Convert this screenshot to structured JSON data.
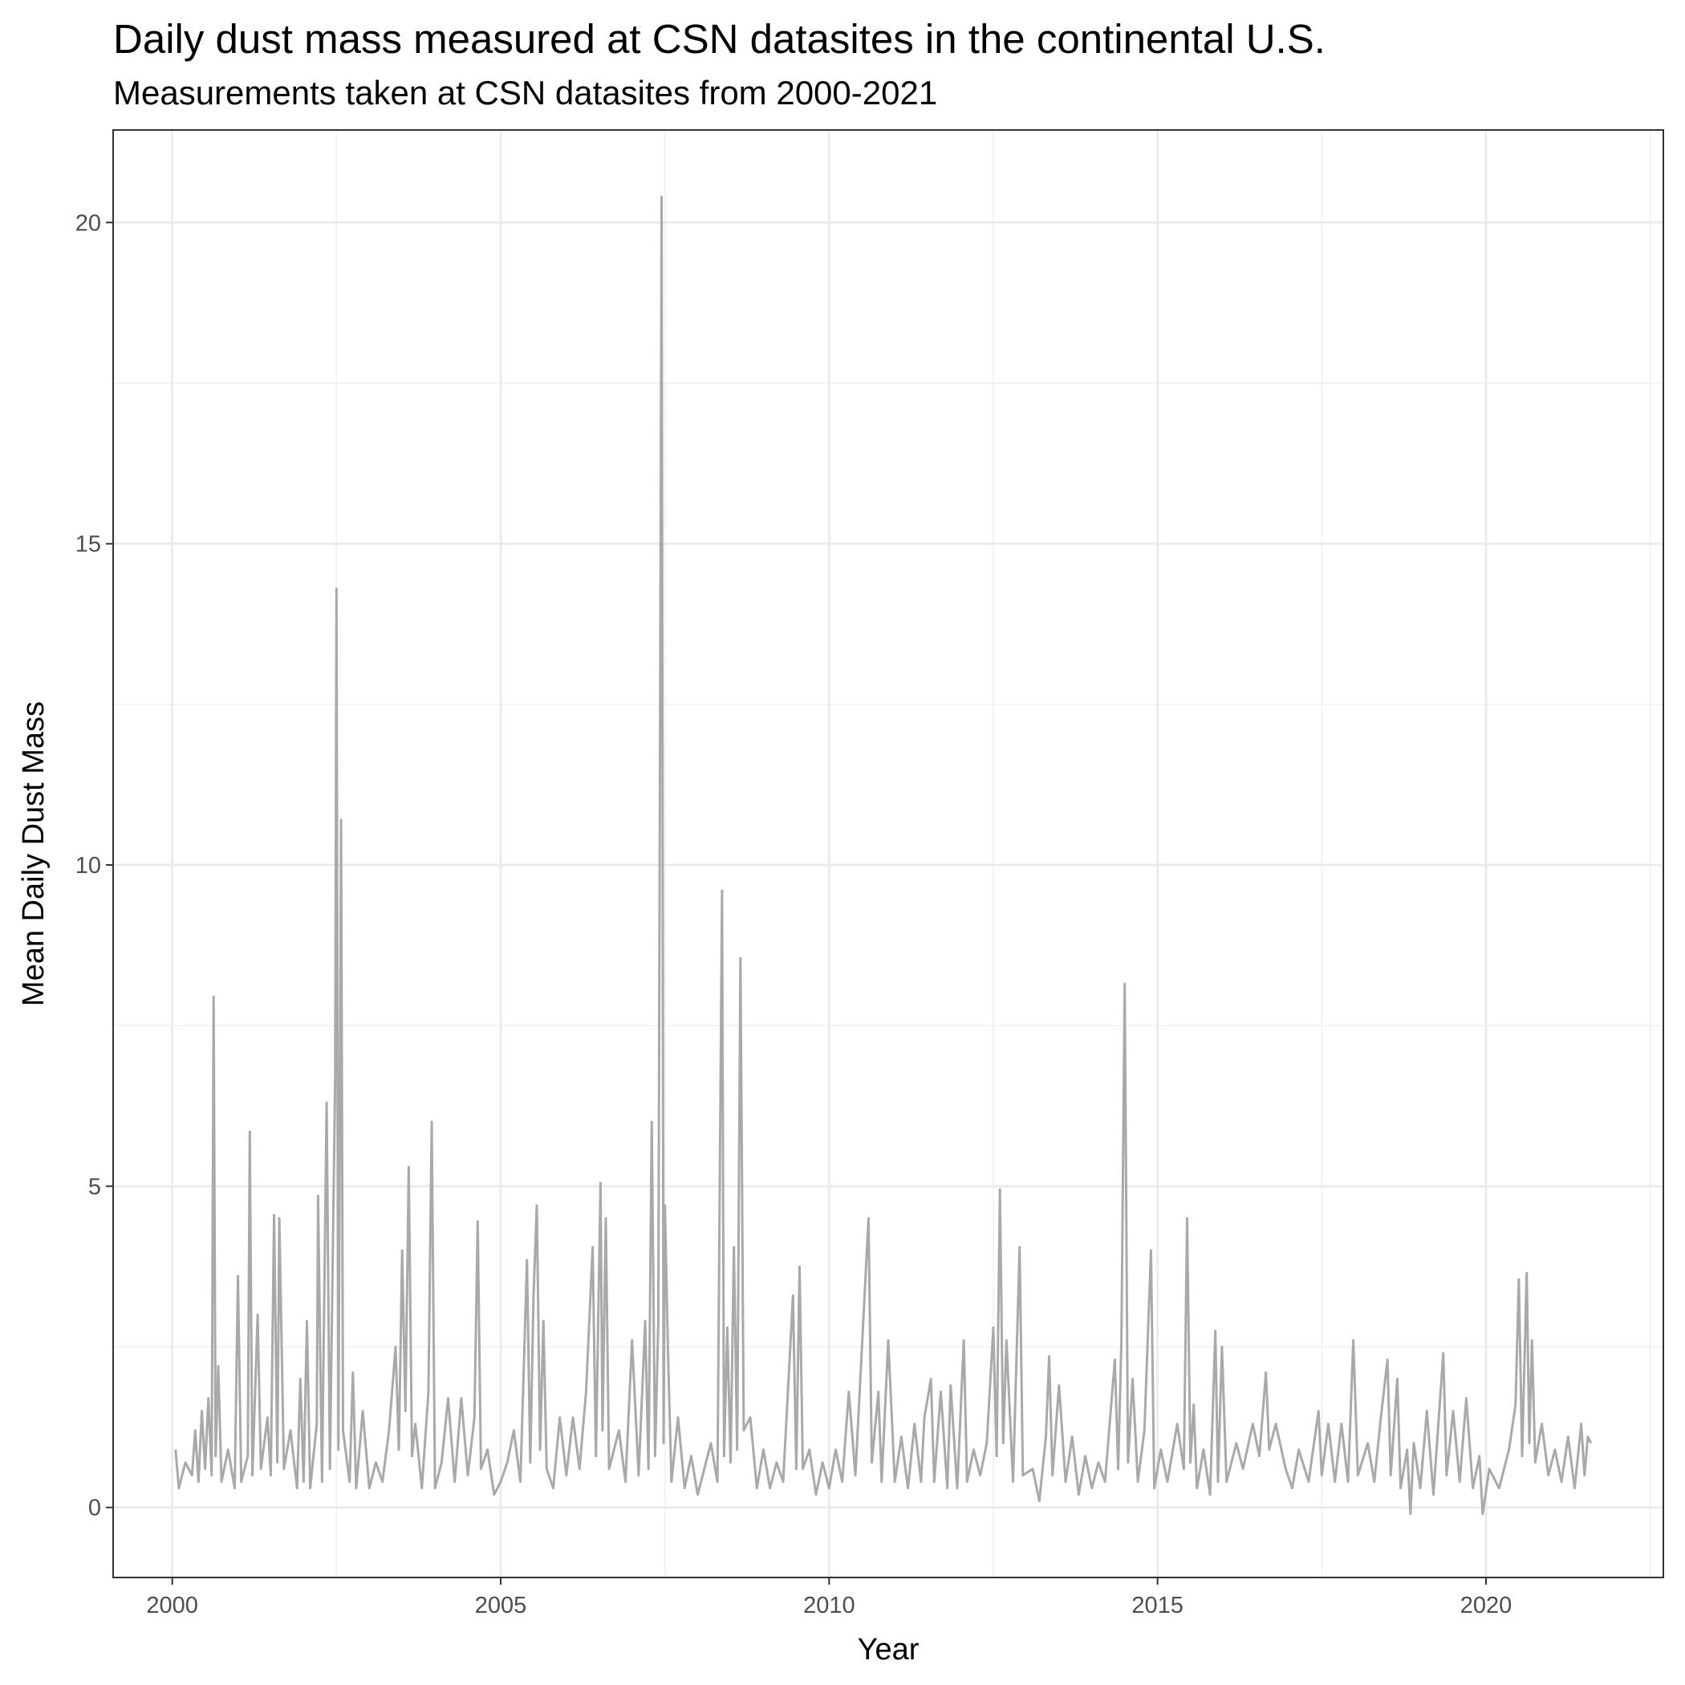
{
  "chart_data": {
    "type": "line",
    "title": "Daily dust mass measured at CSN datasites in the continental U.S.",
    "subtitle": "Measurements taken at CSN datasites from 2000-2021",
    "xlabel": "Year",
    "ylabel": "Mean Daily Dust Mass",
    "xlim": [
      1999.1,
      2022.7
    ],
    "ylim": [
      -1.09,
      21.44
    ],
    "xticks": [
      2000,
      2005,
      2010,
      2015,
      2020
    ],
    "yticks": [
      0,
      5,
      10,
      15,
      20
    ],
    "xminor": [
      2002.5,
      2007.5,
      2012.5,
      2017.5,
      2022.5
    ],
    "yminor": [
      2.5,
      7.5,
      12.5,
      17.5
    ],
    "grid": true,
    "series": [
      {
        "color": "#a9a9a9",
        "x": [
          2000.05,
          2000.1,
          2000.2,
          2000.3,
          2000.35,
          2000.4,
          2000.45,
          2000.5,
          2000.55,
          2000.6,
          2000.63,
          2000.66,
          2000.7,
          2000.75,
          2000.85,
          2000.95,
          2001.0,
          2001.05,
          2001.15,
          2001.18,
          2001.22,
          2001.3,
          2001.35,
          2001.45,
          2001.5,
          2001.55,
          2001.6,
          2001.63,
          2001.7,
          2001.8,
          2001.9,
          2001.95,
          2002.0,
          2002.05,
          2002.1,
          2002.2,
          2002.22,
          2002.28,
          2002.35,
          2002.4,
          2002.48,
          2002.5,
          2002.53,
          2002.57,
          2002.6,
          2002.7,
          2002.75,
          2002.8,
          2002.9,
          2003.0,
          2003.1,
          2003.2,
          2003.3,
          2003.4,
          2003.45,
          2003.5,
          2003.55,
          2003.6,
          2003.65,
          2003.7,
          2003.8,
          2003.9,
          2003.95,
          2004.0,
          2004.1,
          2004.2,
          2004.3,
          2004.4,
          2004.5,
          2004.6,
          2004.65,
          2004.7,
          2004.8,
          2004.9,
          2005.0,
          2005.1,
          2005.2,
          2005.3,
          2005.4,
          2005.45,
          2005.5,
          2005.55,
          2005.6,
          2005.65,
          2005.7,
          2005.8,
          2005.9,
          2006.0,
          2006.1,
          2006.2,
          2006.3,
          2006.4,
          2006.45,
          2006.52,
          2006.55,
          2006.6,
          2006.65,
          2006.8,
          2006.9,
          2007.0,
          2007.1,
          2007.2,
          2007.25,
          2007.3,
          2007.35,
          2007.4,
          2007.45,
          2007.48,
          2007.5,
          2007.55,
          2007.6,
          2007.7,
          2007.8,
          2007.9,
          2008.0,
          2008.1,
          2008.2,
          2008.3,
          2008.37,
          2008.4,
          2008.45,
          2008.5,
          2008.55,
          2008.6,
          2008.65,
          2008.7,
          2008.8,
          2008.9,
          2009.0,
          2009.1,
          2009.2,
          2009.3,
          2009.45,
          2009.5,
          2009.55,
          2009.6,
          2009.7,
          2009.8,
          2009.9,
          2010.0,
          2010.1,
          2010.2,
          2010.3,
          2010.4,
          2010.6,
          2010.65,
          2010.75,
          2010.8,
          2010.9,
          2011.0,
          2011.1,
          2011.2,
          2011.3,
          2011.4,
          2011.45,
          2011.55,
          2011.6,
          2011.7,
          2011.8,
          2011.85,
          2011.95,
          2012.05,
          2012.1,
          2012.2,
          2012.3,
          2012.4,
          2012.5,
          2012.55,
          2012.6,
          2012.65,
          2012.7,
          2012.8,
          2012.9,
          2012.95,
          2013.1,
          2013.2,
          2013.3,
          2013.35,
          2013.4,
          2013.5,
          2013.6,
          2013.7,
          2013.8,
          2013.9,
          2014.0,
          2014.1,
          2014.2,
          2014.35,
          2014.4,
          2014.45,
          2014.5,
          2014.55,
          2014.62,
          2014.7,
          2014.8,
          2014.9,
          2014.95,
          2015.05,
          2015.15,
          2015.3,
          2015.4,
          2015.45,
          2015.5,
          2015.55,
          2015.6,
          2015.7,
          2015.8,
          2015.88,
          2015.92,
          2015.98,
          2016.05,
          2016.2,
          2016.3,
          2016.45,
          2016.55,
          2016.65,
          2016.7,
          2016.8,
          2016.95,
          2017.05,
          2017.15,
          2017.3,
          2017.45,
          2017.5,
          2017.6,
          2017.7,
          2017.8,
          2017.9,
          2017.98,
          2018.05,
          2018.2,
          2018.3,
          2018.4,
          2018.5,
          2018.55,
          2018.65,
          2018.7,
          2018.8,
          2018.85,
          2018.9,
          2019.0,
          2019.1,
          2019.2,
          2019.35,
          2019.4,
          2019.5,
          2019.6,
          2019.7,
          2019.8,
          2019.9,
          2019.95,
          2020.05,
          2020.2,
          2020.35,
          2020.45,
          2020.5,
          2020.55,
          2020.62,
          2020.66,
          2020.7,
          2020.75,
          2020.85,
          2020.95,
          2021.05,
          2021.15,
          2021.25,
          2021.35,
          2021.45,
          2021.5,
          2021.55,
          2021.6
        ],
        "values": [
          0.9,
          0.3,
          0.7,
          0.5,
          1.2,
          0.4,
          1.5,
          0.6,
          1.7,
          0.5,
          7.95,
          0.8,
          2.2,
          0.4,
          0.9,
          0.3,
          3.6,
          0.4,
          0.8,
          5.85,
          0.5,
          3.0,
          0.6,
          1.4,
          0.5,
          4.55,
          0.7,
          4.5,
          0.6,
          1.2,
          0.3,
          2.0,
          0.4,
          2.9,
          0.3,
          1.3,
          4.85,
          0.4,
          6.3,
          0.6,
          6.7,
          14.3,
          0.9,
          10.7,
          1.2,
          0.4,
          2.1,
          0.3,
          1.5,
          0.3,
          0.7,
          0.4,
          1.2,
          2.5,
          0.9,
          4.0,
          1.5,
          5.3,
          0.8,
          1.3,
          0.3,
          1.8,
          6.0,
          0.3,
          0.7,
          1.7,
          0.4,
          1.7,
          0.5,
          1.4,
          4.45,
          0.6,
          0.9,
          0.2,
          0.4,
          0.7,
          1.2,
          0.4,
          3.85,
          0.7,
          3.3,
          4.7,
          0.9,
          2.9,
          0.6,
          0.3,
          1.4,
          0.5,
          1.4,
          0.6,
          1.8,
          4.05,
          0.8,
          5.05,
          1.2,
          4.5,
          0.6,
          1.2,
          0.4,
          2.6,
          0.5,
          2.9,
          0.6,
          6.0,
          0.8,
          2.9,
          20.4,
          1.0,
          4.7,
          2.3,
          0.4,
          1.4,
          0.3,
          0.8,
          0.2,
          0.6,
          1.0,
          0.4,
          9.6,
          0.8,
          2.8,
          0.7,
          4.05,
          0.9,
          8.55,
          1.2,
          1.4,
          0.3,
          0.9,
          0.3,
          0.7,
          0.4,
          3.3,
          0.6,
          3.75,
          0.6,
          0.9,
          0.2,
          0.7,
          0.3,
          0.9,
          0.4,
          1.8,
          0.5,
          4.5,
          0.7,
          1.8,
          0.4,
          2.6,
          0.4,
          1.1,
          0.3,
          1.3,
          0.4,
          1.4,
          2.0,
          0.4,
          1.8,
          0.3,
          1.9,
          0.3,
          2.6,
          0.4,
          0.9,
          0.5,
          1.0,
          2.8,
          0.8,
          4.95,
          1.0,
          2.6,
          0.4,
          4.05,
          0.5,
          0.6,
          0.1,
          1.1,
          2.35,
          0.5,
          1.9,
          0.4,
          1.1,
          0.2,
          0.8,
          0.3,
          0.7,
          0.4,
          2.3,
          0.6,
          2.6,
          8.15,
          0.7,
          2.0,
          0.4,
          1.2,
          4.0,
          0.3,
          0.9,
          0.4,
          1.3,
          0.6,
          4.5,
          0.7,
          1.6,
          0.3,
          0.9,
          0.2,
          2.75,
          0.4,
          2.5,
          0.4,
          1.0,
          0.6,
          1.3,
          0.8,
          2.1,
          0.9,
          1.3,
          0.6,
          0.3,
          0.9,
          0.4,
          1.5,
          0.5,
          1.3,
          0.4,
          1.3,
          0.4,
          2.6,
          0.5,
          1.0,
          0.4,
          1.4,
          2.3,
          0.5,
          2.0,
          0.3,
          0.9,
          -0.1,
          1.0,
          0.3,
          1.5,
          0.2,
          2.4,
          0.5,
          1.5,
          0.4,
          1.7,
          0.3,
          0.8,
          -0.1,
          0.6,
          0.3,
          0.9,
          1.6,
          3.55,
          0.8,
          3.65,
          1.0,
          2.6,
          0.7,
          1.3,
          0.5,
          0.9,
          0.4,
          1.1,
          0.3,
          1.3,
          0.5,
          1.1,
          1.0
        ]
      }
    ]
  }
}
